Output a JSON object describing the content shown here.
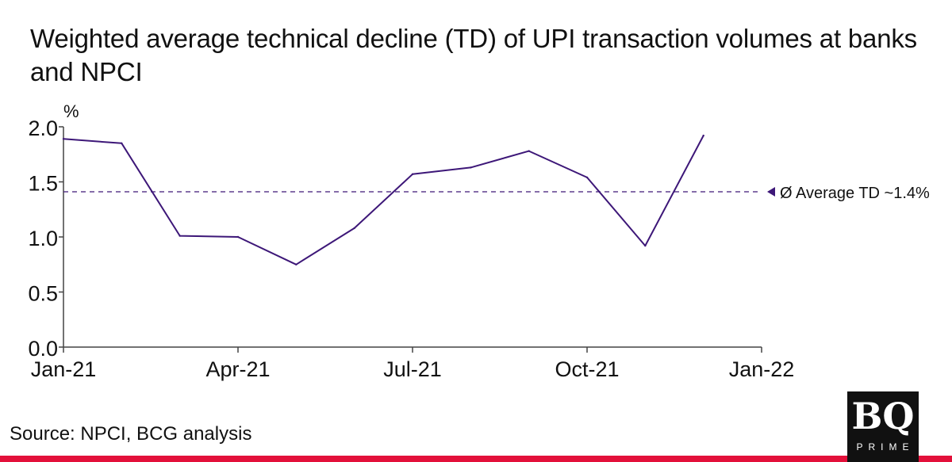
{
  "title": "Weighted average technical decline (TD) of UPI transaction volumes at banks and NPCI",
  "source": "Source: NPCI, BCG analysis",
  "logo": {
    "mark": "BQ",
    "sub": "PRIME"
  },
  "colors": {
    "series": "#3d1778",
    "reference": "#3d1778",
    "axis": "#444444",
    "accent_bar": "#e3103a"
  },
  "chart_data": {
    "type": "line",
    "unit_label": "%",
    "x": [
      "2021-01",
      "2021-02",
      "2021-03",
      "2021-04",
      "2021-05",
      "2021-06",
      "2021-07",
      "2021-08",
      "2021-09",
      "2021-10",
      "2021-11",
      "2021-12"
    ],
    "series": [
      {
        "values": [
          1.89,
          1.85,
          1.01,
          1.0,
          0.75,
          1.08,
          1.57,
          1.63,
          1.78,
          1.54,
          0.92,
          1.92
        ]
      }
    ],
    "xticks": [
      "Jan-21",
      "Apr-21",
      "Jul-21",
      "Oct-21",
      "Jan-22"
    ],
    "yticks": [
      "0.0",
      "0.5",
      "1.0",
      "1.5",
      "2.0"
    ],
    "ylim": [
      0,
      2.0
    ],
    "xlim": [
      "2021-01",
      "2022-01"
    ],
    "reference_line": {
      "value": 1.41,
      "label": "Ø Average TD ~1.4%"
    },
    "grid": false
  }
}
